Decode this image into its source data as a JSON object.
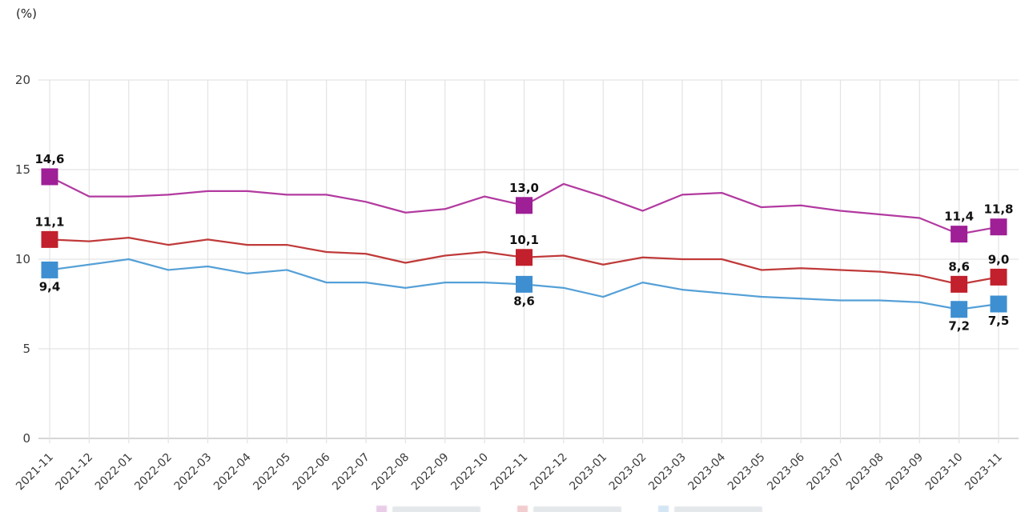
{
  "unit_label": "(%)",
  "chart_data": {
    "type": "line",
    "title": "",
    "xlabel": "",
    "ylabel": "(%)",
    "ylim": [
      0,
      20
    ],
    "yticks": [
      0,
      5,
      10,
      15,
      20
    ],
    "grid": true,
    "decimal_separator": ",",
    "x_categories": [
      "2021-11",
      "2021-12",
      "2022-01",
      "2022-02",
      "2022-03",
      "2022-04",
      "2022-05",
      "2022-06",
      "2022-07",
      "2022-08",
      "2022-09",
      "2022-10",
      "2022-11",
      "2022-12",
      "2023-01",
      "2023-02",
      "2023-03",
      "2023-04",
      "2023-05",
      "2023-06",
      "2023-07",
      "2023-08",
      "2023-09",
      "2023-10",
      "2023-11"
    ],
    "series": [
      {
        "name": "series-magenta",
        "line_color": "#B23AA0",
        "marker_color": "#9E1F96",
        "values": [
          14.6,
          13.5,
          13.5,
          13.6,
          13.8,
          13.8,
          13.6,
          13.6,
          13.2,
          12.6,
          12.8,
          13.5,
          13.0,
          14.2,
          13.5,
          12.7,
          13.6,
          13.7,
          12.9,
          13.0,
          12.7,
          12.5,
          12.3,
          11.4,
          11.8
        ]
      },
      {
        "name": "series-red",
        "line_color": "#C03A3A",
        "marker_color": "#C1202C",
        "values": [
          11.1,
          11.0,
          11.2,
          10.8,
          11.1,
          10.8,
          10.8,
          10.4,
          10.3,
          9.8,
          10.2,
          10.4,
          10.1,
          10.2,
          9.7,
          10.1,
          10.0,
          10.0,
          9.4,
          9.5,
          9.4,
          9.3,
          9.1,
          8.6,
          9.0
        ]
      },
      {
        "name": "series-blue",
        "line_color": "#55A0D7",
        "marker_color": "#3E8FD1",
        "values": [
          9.4,
          9.7,
          10.0,
          9.4,
          9.6,
          9.2,
          9.4,
          8.7,
          8.7,
          8.4,
          8.7,
          8.7,
          8.6,
          8.4,
          7.9,
          8.7,
          8.3,
          8.1,
          7.9,
          7.8,
          7.7,
          7.7,
          7.6,
          7.2,
          7.5
        ]
      }
    ],
    "marker_indices": [
      0,
      12,
      23,
      24
    ],
    "labeled_points": [
      {
        "series": 0,
        "index": 0,
        "text": "14,6",
        "position": "above"
      },
      {
        "series": 1,
        "index": 0,
        "text": "11,1",
        "position": "above"
      },
      {
        "series": 2,
        "index": 0,
        "text": "9,4",
        "position": "below"
      },
      {
        "series": 0,
        "index": 12,
        "text": "13,0",
        "position": "above"
      },
      {
        "series": 1,
        "index": 12,
        "text": "10,1",
        "position": "above"
      },
      {
        "series": 2,
        "index": 12,
        "text": "8,6",
        "position": "below"
      },
      {
        "series": 0,
        "index": 23,
        "text": "11,4",
        "position": "above"
      },
      {
        "series": 1,
        "index": 23,
        "text": "8,6",
        "position": "above"
      },
      {
        "series": 2,
        "index": 23,
        "text": "7,2",
        "position": "below"
      },
      {
        "series": 0,
        "index": 24,
        "text": "11,8",
        "position": "above"
      },
      {
        "series": 1,
        "index": 24,
        "text": "9,0",
        "position": "above"
      },
      {
        "series": 2,
        "index": 24,
        "text": "7,5",
        "position": "below"
      }
    ],
    "legend": {
      "clipped_at_bottom": true,
      "swatch_colors": [
        "#9E1F96",
        "#C1202C",
        "#3E8FD1"
      ]
    }
  },
  "style_colors": {
    "gridline": "#E3E3E3",
    "axis_line": "#C9C9C9",
    "tick_label": "#3B3B3B",
    "value_label": "#111111",
    "background": "#FFFFFF"
  }
}
